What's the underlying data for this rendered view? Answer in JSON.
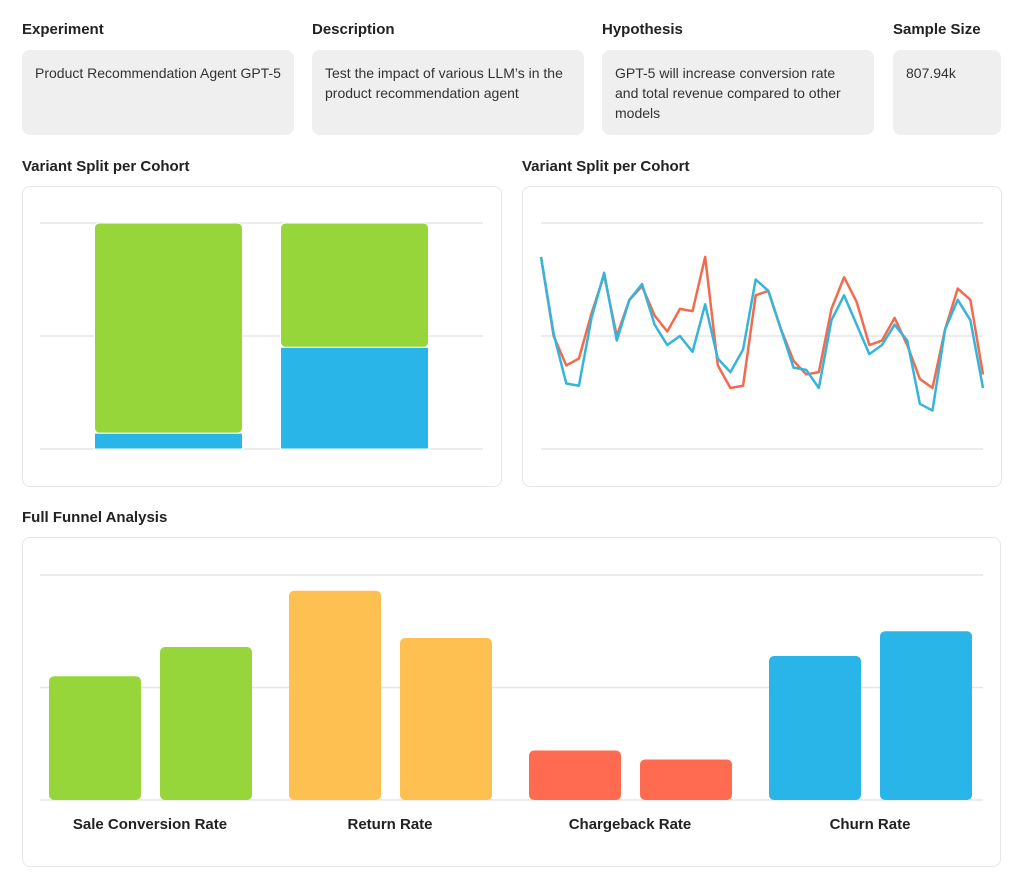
{
  "cards": [
    {
      "label": "Experiment",
      "text": "Product Recommendation Agent GPT-5"
    },
    {
      "label": "Description",
      "text": "Test the impact of various LLM’s in the product recommendation agent"
    },
    {
      "label": "Hypothesis",
      "text": "GPT-5 will increase conversion rate and total revenue compared to other models"
    },
    {
      "label": "Sample Size",
      "text": "807.94k"
    }
  ],
  "chart_data": [
    {
      "type": "stacked_bar",
      "title": "Variant Split per Cohort",
      "categories": [
        null,
        null
      ],
      "series": [
        {
          "color": "#29b5e8",
          "values": [
            7,
            45
          ]
        },
        {
          "color": "#97d63a",
          "values": [
            93,
            55
          ]
        }
      ],
      "ylim": [
        0,
        100
      ],
      "yticks": [
        0,
        50,
        100
      ],
      "grid": true
    },
    {
      "type": "line",
      "title": "Variant Split per Cohort",
      "categories": [
        null,
        null,
        null,
        null,
        null,
        null,
        null,
        null,
        null,
        null,
        null,
        null,
        null,
        null,
        null,
        null,
        null,
        null,
        null,
        null,
        null,
        null,
        null,
        null,
        null,
        null,
        null,
        null,
        null,
        null,
        null,
        null,
        null,
        null,
        null,
        null
      ],
      "series": [
        {
          "color": "#f26b4f",
          "values": [
            85,
            50,
            37,
            40,
            60,
            77,
            50,
            66,
            72,
            59,
            52,
            62,
            61,
            85,
            37,
            27,
            28,
            68,
            70,
            53,
            39,
            33,
            34,
            62,
            76,
            65,
            46,
            48,
            58,
            46,
            31,
            27,
            53,
            71,
            66,
            33
          ]
        },
        {
          "color": "#36b4d9",
          "values": [
            85,
            51,
            29,
            28,
            58,
            78,
            48,
            66,
            73,
            55,
            46,
            50,
            43,
            64,
            40,
            34,
            44,
            75,
            70,
            53,
            36,
            35,
            27,
            57,
            68,
            55,
            42,
            46,
            55,
            48,
            20,
            17,
            53,
            66,
            57,
            27
          ]
        }
      ],
      "ylim": [
        0,
        100
      ],
      "yticks": [
        0,
        50,
        100
      ],
      "grid": true
    },
    {
      "type": "grouped_bar",
      "title": "Full Funnel Analysis",
      "categories": [
        "Sale Conversion Rate",
        "Return Rate",
        "Chargeback Rate",
        "Churn Rate"
      ],
      "colors": [
        "#97d63a",
        "#fec050",
        "#ff6b50",
        "#29b5e8"
      ],
      "series": [
        {
          "values": [
            55,
            93,
            22,
            64
          ]
        },
        {
          "values": [
            68,
            72,
            18,
            75
          ]
        }
      ],
      "ylim": [
        0,
        100
      ],
      "yticks": [
        0,
        50,
        100
      ],
      "grid": true
    }
  ]
}
